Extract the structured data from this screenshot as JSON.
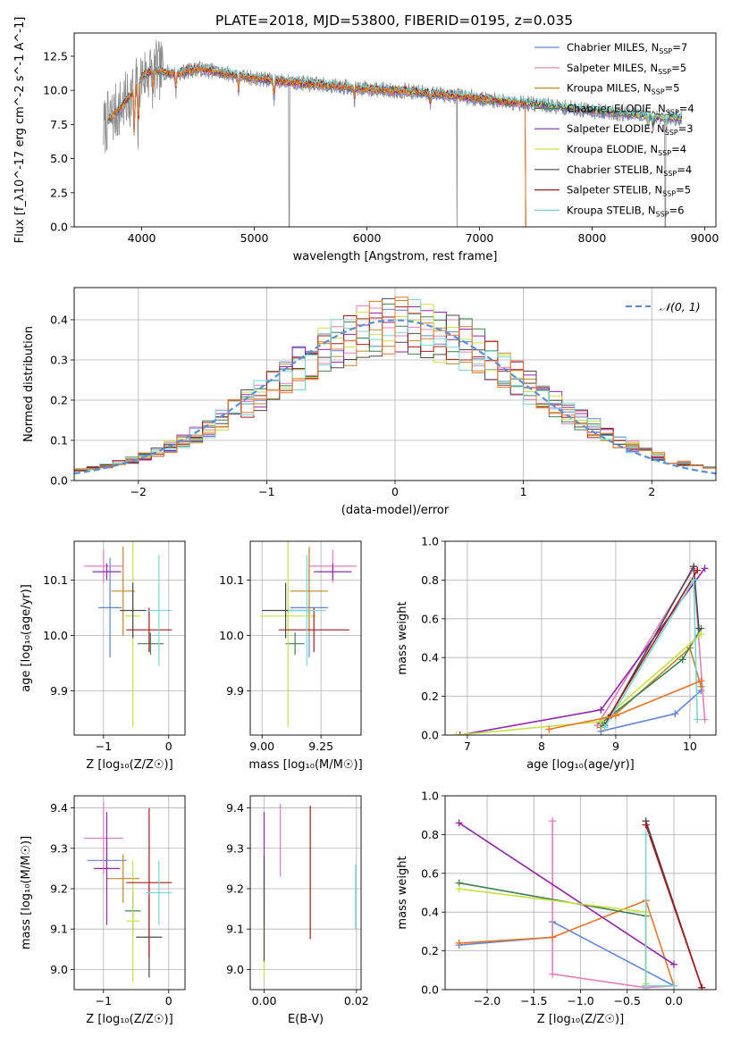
{
  "figure": {
    "title": "PLATE=2018, MJD=53800, FIBERID=0195, z=0.035"
  },
  "colors": {
    "chabrier_miles": "#5f86d8",
    "salpeter_miles": "#e37fbf",
    "kroupa_miles": "#b98a2b",
    "chabrier_elodie": "#3e8050",
    "salpeter_elodie": "#8e27a8",
    "kroupa_elodie": "#c9e043",
    "chabrier_stelib": "#4a4a4a",
    "salpeter_stelib": "#a61b1b",
    "kroupa_stelib": "#79d6d6",
    "data_gray": "#8c8c8c",
    "orange": "#e8762c",
    "normal_curve": "#5a8fd6"
  },
  "chart_data": [
    {
      "id": "spectrum",
      "type": "line",
      "xlabel": "wavelength [Angstrom, rest frame]",
      "ylabel": "Flux [f_λ10^-17 erg cm^-2 s^-1 A^-1]",
      "xlim": [
        3400,
        9100
      ],
      "ylim": [
        0,
        14.2
      ],
      "xticks": [
        "4000",
        "5000",
        "6000",
        "7000",
        "8000",
        "9000"
      ],
      "xtick_values": [
        4000,
        5000,
        6000,
        7000,
        8000,
        9000
      ],
      "yticks": [
        "0.0",
        "2.5",
        "5.0",
        "7.5",
        "10.0",
        "12.5"
      ],
      "ytick_values": [
        0,
        2.5,
        5,
        7.5,
        10,
        12.5
      ],
      "legend_position": "upper-right",
      "legend": [
        {
          "base": "Chabrier MILES, N",
          "sub": "SSP",
          "tail": "=7",
          "color_key": "chabrier_miles"
        },
        {
          "base": "Salpeter MILES, N",
          "sub": "SSP",
          "tail": "=5",
          "color_key": "salpeter_miles"
        },
        {
          "base": "Kroupa MILES, N",
          "sub": "SSP",
          "tail": "=5",
          "color_key": "kroupa_miles"
        },
        {
          "base": "Chabrier ELODIE, N",
          "sub": "SSP",
          "tail": "=4",
          "color_key": "chabrier_elodie"
        },
        {
          "base": "Salpeter ELODIE, N",
          "sub": "SSP",
          "tail": "=3",
          "color_key": "salpeter_elodie"
        },
        {
          "base": "Kroupa ELODIE, N",
          "sub": "SSP",
          "tail": "=4",
          "color_key": "kroupa_elodie"
        },
        {
          "base": "Chabrier STELIB, N",
          "sub": "SSP",
          "tail": "=4",
          "color_key": "chabrier_stelib"
        },
        {
          "base": "Salpeter STELIB, N",
          "sub": "SSP",
          "tail": "=5",
          "color_key": "salpeter_stelib"
        },
        {
          "base": "Kroupa STELIB, N",
          "sub": "SSP",
          "tail": "=6",
          "color_key": "kroupa_stelib"
        }
      ],
      "continuum": [
        [
          3650,
          7.0
        ],
        [
          3700,
          7.8
        ],
        [
          3800,
          8.6
        ],
        [
          3900,
          9.6
        ],
        [
          4000,
          11.0
        ],
        [
          4100,
          11.5
        ],
        [
          4300,
          11.2
        ],
        [
          4500,
          11.6
        ],
        [
          4700,
          11.3
        ],
        [
          4900,
          11.0
        ],
        [
          5200,
          10.7
        ],
        [
          5600,
          10.4
        ],
        [
          6000,
          10.1
        ],
        [
          6400,
          9.9
        ],
        [
          6800,
          9.6
        ],
        [
          7200,
          9.2
        ],
        [
          7600,
          8.9
        ],
        [
          8000,
          8.5
        ],
        [
          8400,
          8.2
        ],
        [
          8700,
          8.0
        ],
        [
          8800,
          7.95
        ]
      ],
      "absorption_lines": [
        [
          3934,
          4.2
        ],
        [
          3969,
          4.0
        ],
        [
          4101,
          1.8
        ],
        [
          4304,
          1.4
        ],
        [
          4861,
          1.2
        ],
        [
          5175,
          1.6
        ],
        [
          5890,
          1.0
        ],
        [
          6563,
          0.8
        ],
        [
          8498,
          0.8
        ],
        [
          8542,
          1.0
        ],
        [
          8662,
          0.9
        ]
      ],
      "data_dropouts": [
        5310,
        6800,
        8650
      ],
      "model_cutoff": 7420
    },
    {
      "id": "residuals",
      "type": "histogram",
      "xlabel": "(data-model)/error",
      "ylabel": "Normed distribution",
      "xlim": [
        -2.5,
        2.5
      ],
      "ylim": [
        0,
        0.48
      ],
      "xticks": [
        "−2",
        "−1",
        "0",
        "1",
        "2"
      ],
      "xtick_values": [
        -2,
        -1,
        0,
        1,
        2
      ],
      "yticks": [
        "0.0",
        "0.1",
        "0.2",
        "0.3",
        "0.4"
      ],
      "ytick_values": [
        0,
        0.1,
        0.2,
        0.3,
        0.4
      ],
      "bin_width": 0.1,
      "legend": "𝒩(0, 1)",
      "legend_position": "upper-right",
      "curve": {
        "mean": 0,
        "sigma": 1
      }
    },
    {
      "id": "age_vs_z",
      "type": "errorbar",
      "xlabel": "Z [log₁₀(Z/Z☉)]",
      "ylabel": "age  [log₁₀(age/yr)]",
      "xlim": [
        -1.45,
        0.25
      ],
      "ylim": [
        9.82,
        10.17
      ],
      "xticks": [
        "−1",
        "0"
      ],
      "xtick_values": [
        -1,
        0
      ],
      "yticks": [
        "9.9",
        "10.0",
        "10.1"
      ],
      "ytick_values": [
        9.9,
        10.0,
        10.1
      ],
      "points": [
        {
          "color_key": "chabrier_miles",
          "x": -0.9,
          "xerr": 0.18,
          "y": 10.05,
          "yerr": 0.09
        },
        {
          "color_key": "salpeter_miles",
          "x": -1.0,
          "xerr": 0.3,
          "y": 10.125,
          "yerr": 0.03
        },
        {
          "color_key": "kroupa_miles",
          "x": -0.7,
          "xerr": 0.18,
          "y": 10.08,
          "yerr": 0.08
        },
        {
          "color_key": "chabrier_elodie",
          "x": -0.28,
          "xerr": 0.2,
          "y": 9.985,
          "yerr": 0.02
        },
        {
          "color_key": "salpeter_elodie",
          "x": -0.95,
          "xerr": 0.22,
          "y": 10.115,
          "yerr": 0.015
        },
        {
          "color_key": "kroupa_elodie",
          "x": -0.55,
          "xerr": 0.12,
          "y": 10.035,
          "yerr": 0.2
        },
        {
          "color_key": "chabrier_stelib",
          "x": -0.55,
          "xerr": 0.2,
          "y": 10.045,
          "yerr": 0.05
        },
        {
          "color_key": "salpeter_stelib",
          "x": -0.3,
          "xerr": 0.35,
          "y": 10.01,
          "yerr": 0.04
        },
        {
          "color_key": "kroupa_stelib",
          "x": -0.15,
          "xerr": 0.2,
          "y": 10.045,
          "yerr": 0.1
        }
      ]
    },
    {
      "id": "age_vs_mass",
      "type": "errorbar",
      "xlabel": "mass [log₁₀(M/M☉)]",
      "ylabel": "",
      "xlim": [
        8.95,
        9.42
      ],
      "ylim": [
        9.82,
        10.17
      ],
      "xticks": [
        "9.00",
        "9.25"
      ],
      "xtick_values": [
        9.0,
        9.25
      ],
      "yticks": [
        "9.9",
        "10.0",
        "10.1"
      ],
      "ytick_values": [
        9.9,
        10.0,
        10.1
      ],
      "points": [
        {
          "color_key": "chabrier_miles",
          "x": 9.2,
          "xerr": 0.08,
          "y": 10.05,
          "yerr": 0.09
        },
        {
          "color_key": "salpeter_miles",
          "x": 9.3,
          "xerr": 0.1,
          "y": 10.125,
          "yerr": 0.03
        },
        {
          "color_key": "kroupa_miles",
          "x": 9.2,
          "xerr": 0.08,
          "y": 10.08,
          "yerr": 0.08
        },
        {
          "color_key": "chabrier_elodie",
          "x": 9.14,
          "xerr": 0.04,
          "y": 9.985,
          "yerr": 0.02
        },
        {
          "color_key": "salpeter_elodie",
          "x": 9.3,
          "xerr": 0.08,
          "y": 10.115,
          "yerr": 0.015
        },
        {
          "color_key": "kroupa_elodie",
          "x": 9.11,
          "xerr": 0.12,
          "y": 10.035,
          "yerr": 0.2
        },
        {
          "color_key": "chabrier_stelib",
          "x": 9.1,
          "xerr": 0.1,
          "y": 10.045,
          "yerr": 0.05
        },
        {
          "color_key": "salpeter_stelib",
          "x": 9.22,
          "xerr": 0.15,
          "y": 10.01,
          "yerr": 0.04
        },
        {
          "color_key": "kroupa_stelib",
          "x": 9.19,
          "xerr": 0.08,
          "y": 10.045,
          "yerr": 0.1
        }
      ]
    },
    {
      "id": "massweight_vs_age",
      "type": "line",
      "xlabel": "age  [log₁₀(age/yr)]",
      "ylabel": "mass weight",
      "xlim": [
        6.7,
        10.35
      ],
      "ylim": [
        0,
        1.0
      ],
      "xticks": [
        "7",
        "8",
        "9",
        "10"
      ],
      "xtick_values": [
        7,
        8,
        9,
        10
      ],
      "yticks": [
        "0.0",
        "0.2",
        "0.4",
        "0.6",
        "0.8",
        "1.0"
      ],
      "ytick_values": [
        0,
        0.2,
        0.4,
        0.6,
        0.8,
        1.0
      ],
      "series": [
        {
          "color_key": "chabrier_miles",
          "points": [
            [
              8.8,
              0.02
            ],
            [
              9.8,
              0.11
            ],
            [
              10.15,
              0.23
            ]
          ]
        },
        {
          "color_key": "salpeter_miles",
          "points": [
            [
              8.75,
              0.05
            ],
            [
              10.05,
              0.86
            ],
            [
              10.2,
              0.08
            ]
          ]
        },
        {
          "color_key": "kroupa_miles",
          "points": [
            [
              8.8,
              0.04
            ],
            [
              10.0,
              0.45
            ],
            [
              10.15,
              0.25
            ]
          ]
        },
        {
          "color_key": "chabrier_elodie",
          "points": [
            [
              8.8,
              0.06
            ],
            [
              9.9,
              0.39
            ],
            [
              10.15,
              0.55
            ]
          ]
        },
        {
          "color_key": "salpeter_elodie",
          "points": [
            [
              6.9,
              0.0
            ],
            [
              8.8,
              0.13
            ],
            [
              10.2,
              0.86
            ]
          ]
        },
        {
          "color_key": "kroupa_elodie",
          "points": [
            [
              6.85,
              0.0
            ],
            [
              8.8,
              0.07
            ],
            [
              10.15,
              0.52
            ]
          ]
        },
        {
          "color_key": "chabrier_stelib",
          "points": [
            [
              8.85,
              0.05
            ],
            [
              10.05,
              0.87
            ],
            [
              10.12,
              0.55
            ]
          ]
        },
        {
          "color_key": "salpeter_stelib",
          "points": [
            [
              8.9,
              0.09
            ],
            [
              10.1,
              0.85
            ]
          ]
        },
        {
          "color_key": "kroupa_stelib",
          "points": [
            [
              8.85,
              0.04
            ],
            [
              10.05,
              0.8
            ],
            [
              10.1,
              0.08
            ]
          ]
        },
        {
          "color_key": "orange",
          "points": [
            [
              8.1,
              0.03
            ],
            [
              9.0,
              0.1
            ],
            [
              10.15,
              0.28
            ]
          ]
        }
      ]
    },
    {
      "id": "mass_vs_z",
      "type": "errorbar",
      "xlabel": "Z [log₁₀(Z/Z☉)]",
      "ylabel": "mass [log₁₀(M/M☉)]",
      "xlim": [
        -1.45,
        0.25
      ],
      "ylim": [
        8.95,
        9.43
      ],
      "xticks": [
        "−1",
        "0"
      ],
      "xtick_values": [
        -1,
        0
      ],
      "yticks": [
        "9.0",
        "9.1",
        "9.2",
        "9.3",
        "9.4"
      ],
      "ytick_values": [
        9.0,
        9.1,
        9.2,
        9.3,
        9.4
      ],
      "points": [
        {
          "color_key": "chabrier_miles",
          "x": -0.95,
          "xerr": 0.3,
          "y": 9.27,
          "yerr": 0.05
        },
        {
          "color_key": "salpeter_miles",
          "x": -1.0,
          "xerr": 0.3,
          "y": 9.325,
          "yerr": 0.09
        },
        {
          "color_key": "kroupa_miles",
          "x": -0.7,
          "xerr": 0.25,
          "y": 9.225,
          "yerr": 0.06
        },
        {
          "color_key": "chabrier_elodie",
          "x": -0.55,
          "xerr": 0.12,
          "y": 9.145,
          "yerr": 0.05
        },
        {
          "color_key": "salpeter_elodie",
          "x": -0.95,
          "xerr": 0.2,
          "y": 9.25,
          "yerr": 0.14
        },
        {
          "color_key": "kroupa_elodie",
          "x": -0.55,
          "xerr": 0.1,
          "y": 9.12,
          "yerr": 0.15
        },
        {
          "color_key": "chabrier_stelib",
          "x": -0.3,
          "xerr": 0.2,
          "y": 9.08,
          "yerr": 0.1
        },
        {
          "color_key": "salpeter_stelib",
          "x": -0.3,
          "xerr": 0.35,
          "y": 9.215,
          "yerr": 0.185
        },
        {
          "color_key": "kroupa_stelib",
          "x": -0.15,
          "xerr": 0.2,
          "y": 9.19,
          "yerr": 0.08
        }
      ]
    },
    {
      "id": "mass_vs_ebv",
      "type": "errorbar",
      "xlabel": "E(B-V)",
      "ylabel": "",
      "xlim": [
        -0.003,
        0.021
      ],
      "ylim": [
        8.95,
        9.43
      ],
      "xticks": [
        "0.00",
        "0.02"
      ],
      "xtick_values": [
        0.0,
        0.02
      ],
      "yticks": [
        "9.0",
        "9.1",
        "9.2",
        "9.3",
        "9.4"
      ],
      "ytick_values": [
        9.0,
        9.1,
        9.2,
        9.3,
        9.4
      ],
      "points": [
        {
          "color_key": "salpeter_elodie",
          "x": 0.0,
          "xerr": 0,
          "y": 9.25,
          "yerr": 0.14
        },
        {
          "color_key": "kroupa_elodie",
          "x": 0.0,
          "xerr": 0,
          "y": 9.08,
          "yerr": 0.1
        },
        {
          "color_key": "chabrier_stelib",
          "x": 0.0,
          "xerr": 0,
          "y": 9.15,
          "yerr": 0.13
        },
        {
          "color_key": "salpeter_miles",
          "x": 0.0035,
          "xerr": 0,
          "y": 9.32,
          "yerr": 0.09
        },
        {
          "color_key": "salpeter_stelib",
          "x": 0.01,
          "xerr": 0,
          "y": 9.24,
          "yerr": 0.165
        },
        {
          "color_key": "kroupa_stelib",
          "x": 0.0198,
          "xerr": 0,
          "y": 9.18,
          "yerr": 0.08
        }
      ]
    },
    {
      "id": "massweight_vs_z",
      "type": "line",
      "xlabel": "Z [log₁₀(Z/Z☉)]",
      "ylabel": "mass weight",
      "xlim": [
        -2.45,
        0.45
      ],
      "ylim": [
        0,
        1.0
      ],
      "xticks": [
        "−2.0",
        "−1.5",
        "−1.0",
        "−0.5",
        "0.0"
      ],
      "xtick_values": [
        -2.0,
        -1.5,
        -1.0,
        -0.5,
        0.0
      ],
      "yticks": [
        "0.0",
        "0.2",
        "0.4",
        "0.6",
        "0.8",
        "1.0"
      ],
      "ytick_values": [
        0,
        0.2,
        0.4,
        0.6,
        0.8,
        1.0
      ],
      "series": [
        {
          "color_key": "chabrier_miles",
          "points": [
            [
              -2.3,
              0.23
            ],
            [
              -1.3,
              0.27
            ],
            [
              -1.3,
              0.35
            ],
            [
              0.0,
              0.02
            ]
          ]
        },
        {
          "color_key": "salpeter_miles",
          "points": [
            [
              -1.3,
              0.87
            ],
            [
              -1.3,
              0.08
            ],
            [
              -0.3,
              0.01
            ],
            [
              0.0,
              0.02
            ]
          ]
        },
        {
          "color_key": "orange",
          "points": [
            [
              -2.3,
              0.24
            ],
            [
              -1.3,
              0.27
            ],
            [
              -0.3,
              0.46
            ],
            [
              0.0,
              0.02
            ]
          ]
        },
        {
          "color_key": "chabrier_elodie",
          "points": [
            [
              -2.3,
              0.55
            ],
            [
              -0.3,
              0.38
            ],
            [
              -0.3,
              0.02
            ]
          ]
        },
        {
          "color_key": "salpeter_elodie",
          "points": [
            [
              -2.3,
              0.86
            ],
            [
              0.0,
              0.13
            ]
          ]
        },
        {
          "color_key": "kroupa_elodie",
          "points": [
            [
              -2.3,
              0.52
            ],
            [
              -0.3,
              0.4
            ],
            [
              -0.3,
              0.03
            ]
          ]
        },
        {
          "color_key": "chabrier_stelib",
          "points": [
            [
              -0.3,
              0.87
            ],
            [
              0.3,
              0.01
            ]
          ]
        },
        {
          "color_key": "salpeter_stelib",
          "points": [
            [
              -0.3,
              0.85
            ],
            [
              0.3,
              0.01
            ]
          ]
        },
        {
          "color_key": "kroupa_stelib",
          "points": [
            [
              -0.3,
              0.8
            ],
            [
              -0.3,
              0.02
            ],
            [
              0.0,
              0.02
            ]
          ]
        }
      ]
    }
  ]
}
